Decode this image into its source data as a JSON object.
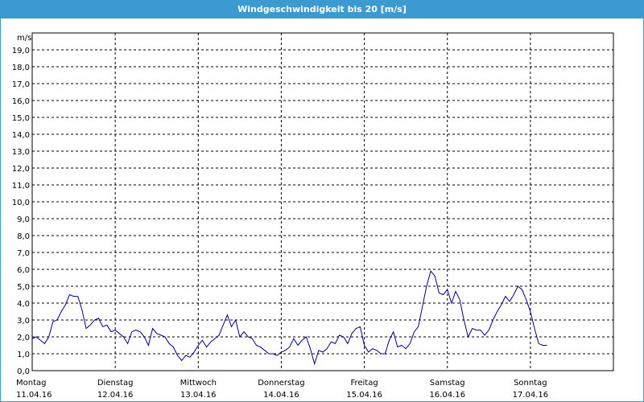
{
  "window": {
    "title": "Windgeschwindigkeit bis 20 [m/s]"
  },
  "colors": {
    "titlebar": "#3c9ad0",
    "line": "#00008b",
    "grid": "#000000"
  },
  "chart_data": {
    "type": "line",
    "title": "Windgeschwindigkeit bis 20 [m/s]",
    "ylabel": "m/s",
    "ylim": [
      0,
      20
    ],
    "xlim": [
      0,
      7
    ],
    "grid": true,
    "y_ticks": [
      "0,0",
      "1,0",
      "2,0",
      "3,0",
      "4,0",
      "5,0",
      "6,0",
      "7,0",
      "8,0",
      "9,0",
      "10,0",
      "11,0",
      "12,0",
      "13,0",
      "14,0",
      "15,0",
      "16,0",
      "17,0",
      "18,0",
      "19,0"
    ],
    "x_ticks": [
      {
        "day": "Montag",
        "date": "11.04.16"
      },
      {
        "day": "Dienstag",
        "date": "12.04.16"
      },
      {
        "day": "Mittwoch",
        "date": "13.04.16"
      },
      {
        "day": "Donnerstag",
        "date": "14.04.16"
      },
      {
        "day": "Freitag",
        "date": "15.04.16"
      },
      {
        "day": "Samstag",
        "date": "16.04.16"
      },
      {
        "day": "Sonntag",
        "date": "17.04.16"
      }
    ],
    "series": [
      {
        "color": "#00008b",
        "points": [
          [
            0.0,
            1.9
          ],
          [
            0.05,
            2.0
          ],
          [
            0.1,
            1.8
          ],
          [
            0.15,
            1.6
          ],
          [
            0.2,
            2.0
          ],
          [
            0.25,
            2.9
          ],
          [
            0.3,
            3.0
          ],
          [
            0.35,
            3.5
          ],
          [
            0.4,
            3.9
          ],
          [
            0.45,
            4.5
          ],
          [
            0.5,
            4.4
          ],
          [
            0.55,
            4.4
          ],
          [
            0.6,
            3.6
          ],
          [
            0.65,
            2.5
          ],
          [
            0.7,
            2.7
          ],
          [
            0.75,
            3.0
          ],
          [
            0.8,
            3.1
          ],
          [
            0.85,
            2.6
          ],
          [
            0.9,
            2.7
          ],
          [
            0.95,
            2.3
          ],
          [
            1.0,
            2.4
          ],
          [
            1.05,
            2.2
          ],
          [
            1.1,
            2.0
          ],
          [
            1.15,
            1.6
          ],
          [
            1.2,
            2.3
          ],
          [
            1.25,
            2.4
          ],
          [
            1.3,
            2.3
          ],
          [
            1.35,
            2.0
          ],
          [
            1.4,
            1.5
          ],
          [
            1.45,
            2.5
          ],
          [
            1.5,
            2.2
          ],
          [
            1.55,
            2.1
          ],
          [
            1.6,
            2.0
          ],
          [
            1.65,
            1.6
          ],
          [
            1.7,
            1.4
          ],
          [
            1.75,
            0.9
          ],
          [
            1.8,
            0.6
          ],
          [
            1.85,
            0.9
          ],
          [
            1.9,
            0.8
          ],
          [
            1.95,
            1.1
          ],
          [
            2.0,
            1.5
          ],
          [
            2.05,
            1.8
          ],
          [
            2.1,
            1.4
          ],
          [
            2.15,
            1.7
          ],
          [
            2.2,
            1.9
          ],
          [
            2.25,
            2.1
          ],
          [
            2.3,
            2.7
          ],
          [
            2.35,
            3.3
          ],
          [
            2.4,
            2.6
          ],
          [
            2.45,
            3.0
          ],
          [
            2.5,
            2.0
          ],
          [
            2.55,
            2.3
          ],
          [
            2.6,
            2.0
          ],
          [
            2.65,
            1.9
          ],
          [
            2.7,
            1.5
          ],
          [
            2.75,
            1.4
          ],
          [
            2.8,
            1.2
          ],
          [
            2.85,
            1.0
          ],
          [
            2.9,
            1.0
          ],
          [
            2.95,
            0.9
          ],
          [
            3.0,
            1.1
          ],
          [
            3.05,
            1.2
          ],
          [
            3.1,
            1.4
          ],
          [
            3.15,
            1.9
          ],
          [
            3.2,
            1.5
          ],
          [
            3.25,
            1.8
          ],
          [
            3.3,
            2.0
          ],
          [
            3.35,
            1.3
          ],
          [
            3.4,
            0.4
          ],
          [
            3.45,
            1.2
          ],
          [
            3.5,
            1.1
          ],
          [
            3.55,
            1.3
          ],
          [
            3.6,
            1.7
          ],
          [
            3.65,
            1.6
          ],
          [
            3.7,
            2.1
          ],
          [
            3.75,
            2.0
          ],
          [
            3.8,
            1.6
          ],
          [
            3.85,
            2.2
          ],
          [
            3.9,
            2.5
          ],
          [
            3.95,
            2.6
          ],
          [
            4.0,
            1.5
          ],
          [
            4.05,
            1.1
          ],
          [
            4.1,
            1.3
          ],
          [
            4.15,
            1.2
          ],
          [
            4.2,
            1.0
          ],
          [
            4.25,
            1.0
          ],
          [
            4.3,
            1.8
          ],
          [
            4.35,
            2.3
          ],
          [
            4.4,
            1.4
          ],
          [
            4.45,
            1.5
          ],
          [
            4.5,
            1.3
          ],
          [
            4.55,
            1.6
          ],
          [
            4.6,
            2.3
          ],
          [
            4.65,
            2.6
          ],
          [
            4.7,
            3.8
          ],
          [
            4.75,
            5.0
          ],
          [
            4.8,
            5.9
          ],
          [
            4.85,
            5.6
          ],
          [
            4.9,
            4.6
          ],
          [
            4.95,
            4.5
          ],
          [
            5.0,
            4.8
          ],
          [
            5.05,
            4.0
          ],
          [
            5.1,
            4.7
          ],
          [
            5.15,
            4.2
          ],
          [
            5.2,
            3.0
          ],
          [
            5.25,
            2.0
          ],
          [
            5.3,
            2.5
          ],
          [
            5.35,
            2.4
          ],
          [
            5.4,
            2.4
          ],
          [
            5.45,
            2.1
          ],
          [
            5.5,
            2.4
          ],
          [
            5.55,
            3.0
          ],
          [
            5.6,
            3.5
          ],
          [
            5.65,
            3.9
          ],
          [
            5.7,
            4.4
          ],
          [
            5.75,
            4.1
          ],
          [
            5.8,
            4.5
          ],
          [
            5.85,
            5.0
          ],
          [
            5.9,
            4.8
          ],
          [
            5.95,
            4.2
          ],
          [
            6.0,
            3.5
          ],
          [
            6.05,
            2.5
          ],
          [
            6.1,
            1.6
          ],
          [
            6.15,
            1.5
          ],
          [
            6.2,
            1.5
          ]
        ]
      }
    ]
  }
}
